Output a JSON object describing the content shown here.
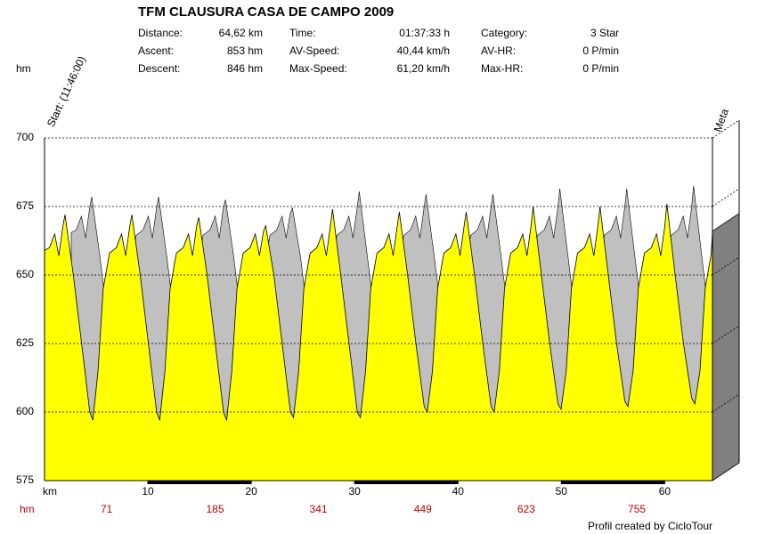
{
  "chart_data": {
    "type": "area",
    "title": "TFM CLAUSURA CASA DE CAMPO 2009",
    "stats": [
      {
        "label": "Distance:",
        "value": "64,62 km"
      },
      {
        "label": "Time:",
        "value": "01:37:33 h"
      },
      {
        "label": "Category:",
        "value": "3 Star"
      },
      {
        "label": "Ascent:",
        "value": "853 hm"
      },
      {
        "label": "AV-Speed:",
        "value": "40,44 km/h"
      },
      {
        "label": "AV-HR:",
        "value": "0 P/min"
      },
      {
        "label": "Descent:",
        "value": "846 hm"
      },
      {
        "label": "Max-Speed:",
        "value": "61,20 km/h"
      },
      {
        "label": "Max-HR:",
        "value": "0 P/min"
      }
    ],
    "y_label": "hm",
    "x_label": "km",
    "start_label": "Start: (11:46:00)",
    "end_label": "Meta",
    "ascent_label": "hm",
    "ascent_markers": [
      {
        "x": 6,
        "value": 71
      },
      {
        "x": 16.5,
        "value": 185
      },
      {
        "x": 26.5,
        "value": 341
      },
      {
        "x": 36.6,
        "value": 449
      },
      {
        "x": 46.6,
        "value": 623
      },
      {
        "x": 57.3,
        "value": 755
      }
    ],
    "footer": "Profil created by CicloTour",
    "color": "#ffff00",
    "shadow_color": "#c0c0c0",
    "wall_color": "#808080",
    "grid": true,
    "xlim": [
      0,
      64.62
    ],
    "xticks": [
      10,
      20,
      30,
      40,
      50,
      60
    ],
    "ylim": [
      575,
      700
    ],
    "yticks": [
      575,
      600,
      625,
      650,
      675,
      700
    ],
    "x": [
      0,
      0.48,
      0.98,
      1.38,
      1.78,
      1.98,
      2.78,
      3.58,
      4.38,
      4.68,
      5.18,
      5.68,
      6.28,
      6.95,
      7.45,
      7.85,
      8.25,
      8.45,
      9.25,
      10.05,
      10.85,
      11.15,
      11.65,
      12.15,
      12.75,
      13.42,
      13.92,
      14.32,
      14.72,
      14.92,
      15.72,
      16.52,
      17.32,
      17.62,
      18.12,
      18.62,
      19.22,
      19.89,
      20.39,
      20.79,
      21.19,
      21.39,
      22.19,
      22.99,
      23.79,
      24.09,
      24.59,
      25.09,
      25.69,
      26.36,
      26.86,
      27.26,
      27.66,
      27.86,
      28.66,
      29.46,
      30.26,
      30.56,
      31.06,
      31.56,
      32.16,
      32.83,
      33.33,
      33.73,
      34.13,
      34.33,
      35.13,
      35.93,
      36.73,
      37.03,
      37.53,
      38.03,
      38.63,
      39.3,
      39.8,
      40.2,
      40.6,
      40.8,
      41.6,
      42.4,
      43.2,
      43.5,
      44.0,
      44.5,
      45.1,
      45.77,
      46.27,
      46.67,
      47.07,
      47.27,
      48.07,
      48.87,
      49.67,
      49.97,
      50.47,
      50.97,
      51.57,
      52.24,
      52.74,
      53.14,
      53.54,
      53.74,
      54.54,
      55.34,
      56.14,
      56.44,
      56.94,
      57.44,
      58.04,
      58.71,
      59.21,
      59.61,
      60.01,
      60.21,
      61.01,
      61.81,
      62.61,
      62.91,
      63.41,
      63.91,
      64.51,
      64.62
    ],
    "values": [
      659,
      660,
      665,
      657,
      668,
      672,
      650,
      625,
      600,
      597,
      615,
      645,
      658,
      660,
      665,
      657,
      668,
      672,
      650,
      625,
      600,
      597,
      615,
      645,
      658,
      660,
      665,
      657,
      668,
      671,
      650,
      625,
      600,
      597,
      615,
      645,
      658,
      660,
      665,
      657,
      666,
      668,
      650,
      625,
      600,
      598,
      615,
      645,
      658,
      660,
      665,
      657,
      668,
      674,
      650,
      625,
      600,
      598,
      615,
      645,
      658,
      660,
      665,
      657,
      668,
      673,
      650,
      625,
      602,
      600,
      615,
      645,
      658,
      660,
      665,
      657,
      668,
      673,
      650,
      625,
      602,
      600,
      615,
      645,
      658,
      660,
      665,
      657,
      668,
      675,
      650,
      625,
      603,
      601,
      615,
      645,
      658,
      660,
      665,
      657,
      668,
      675,
      650,
      625,
      604,
      602,
      615,
      645,
      658,
      660,
      665,
      657,
      668,
      676,
      650,
      625,
      605,
      603,
      615,
      645,
      658,
      666
    ]
  }
}
